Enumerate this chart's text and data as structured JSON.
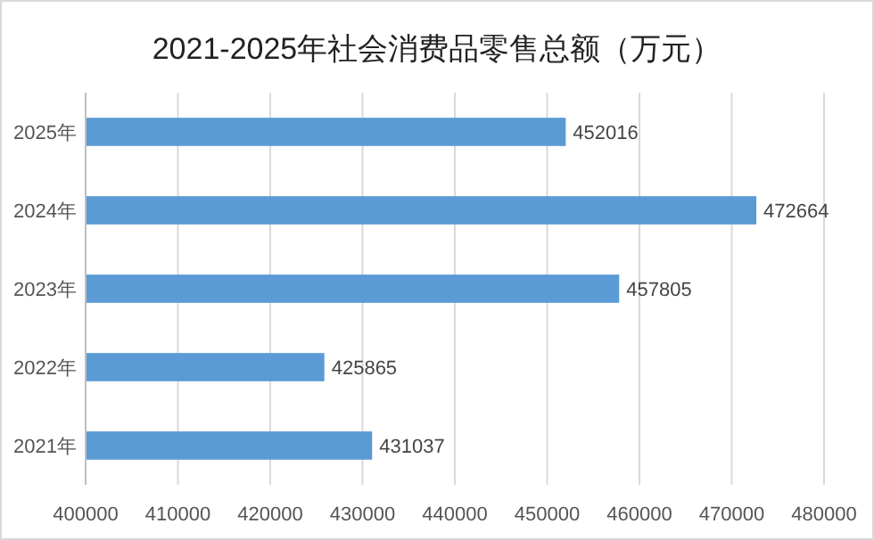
{
  "chart_data": {
    "type": "bar",
    "orientation": "horizontal",
    "title": "2021-2025年社会消费品零售总额（万元）",
    "categories": [
      "2025年",
      "2024年",
      "2023年",
      "2022年",
      "2021年"
    ],
    "values": [
      452016,
      472664,
      457805,
      425865,
      431037
    ],
    "color": "#5b9bd5",
    "data_labels": true,
    "grid": "x",
    "xlim": [
      400000,
      480000
    ],
    "xticks": [
      400000,
      410000,
      420000,
      430000,
      440000,
      450000,
      460000,
      470000,
      480000
    ]
  }
}
